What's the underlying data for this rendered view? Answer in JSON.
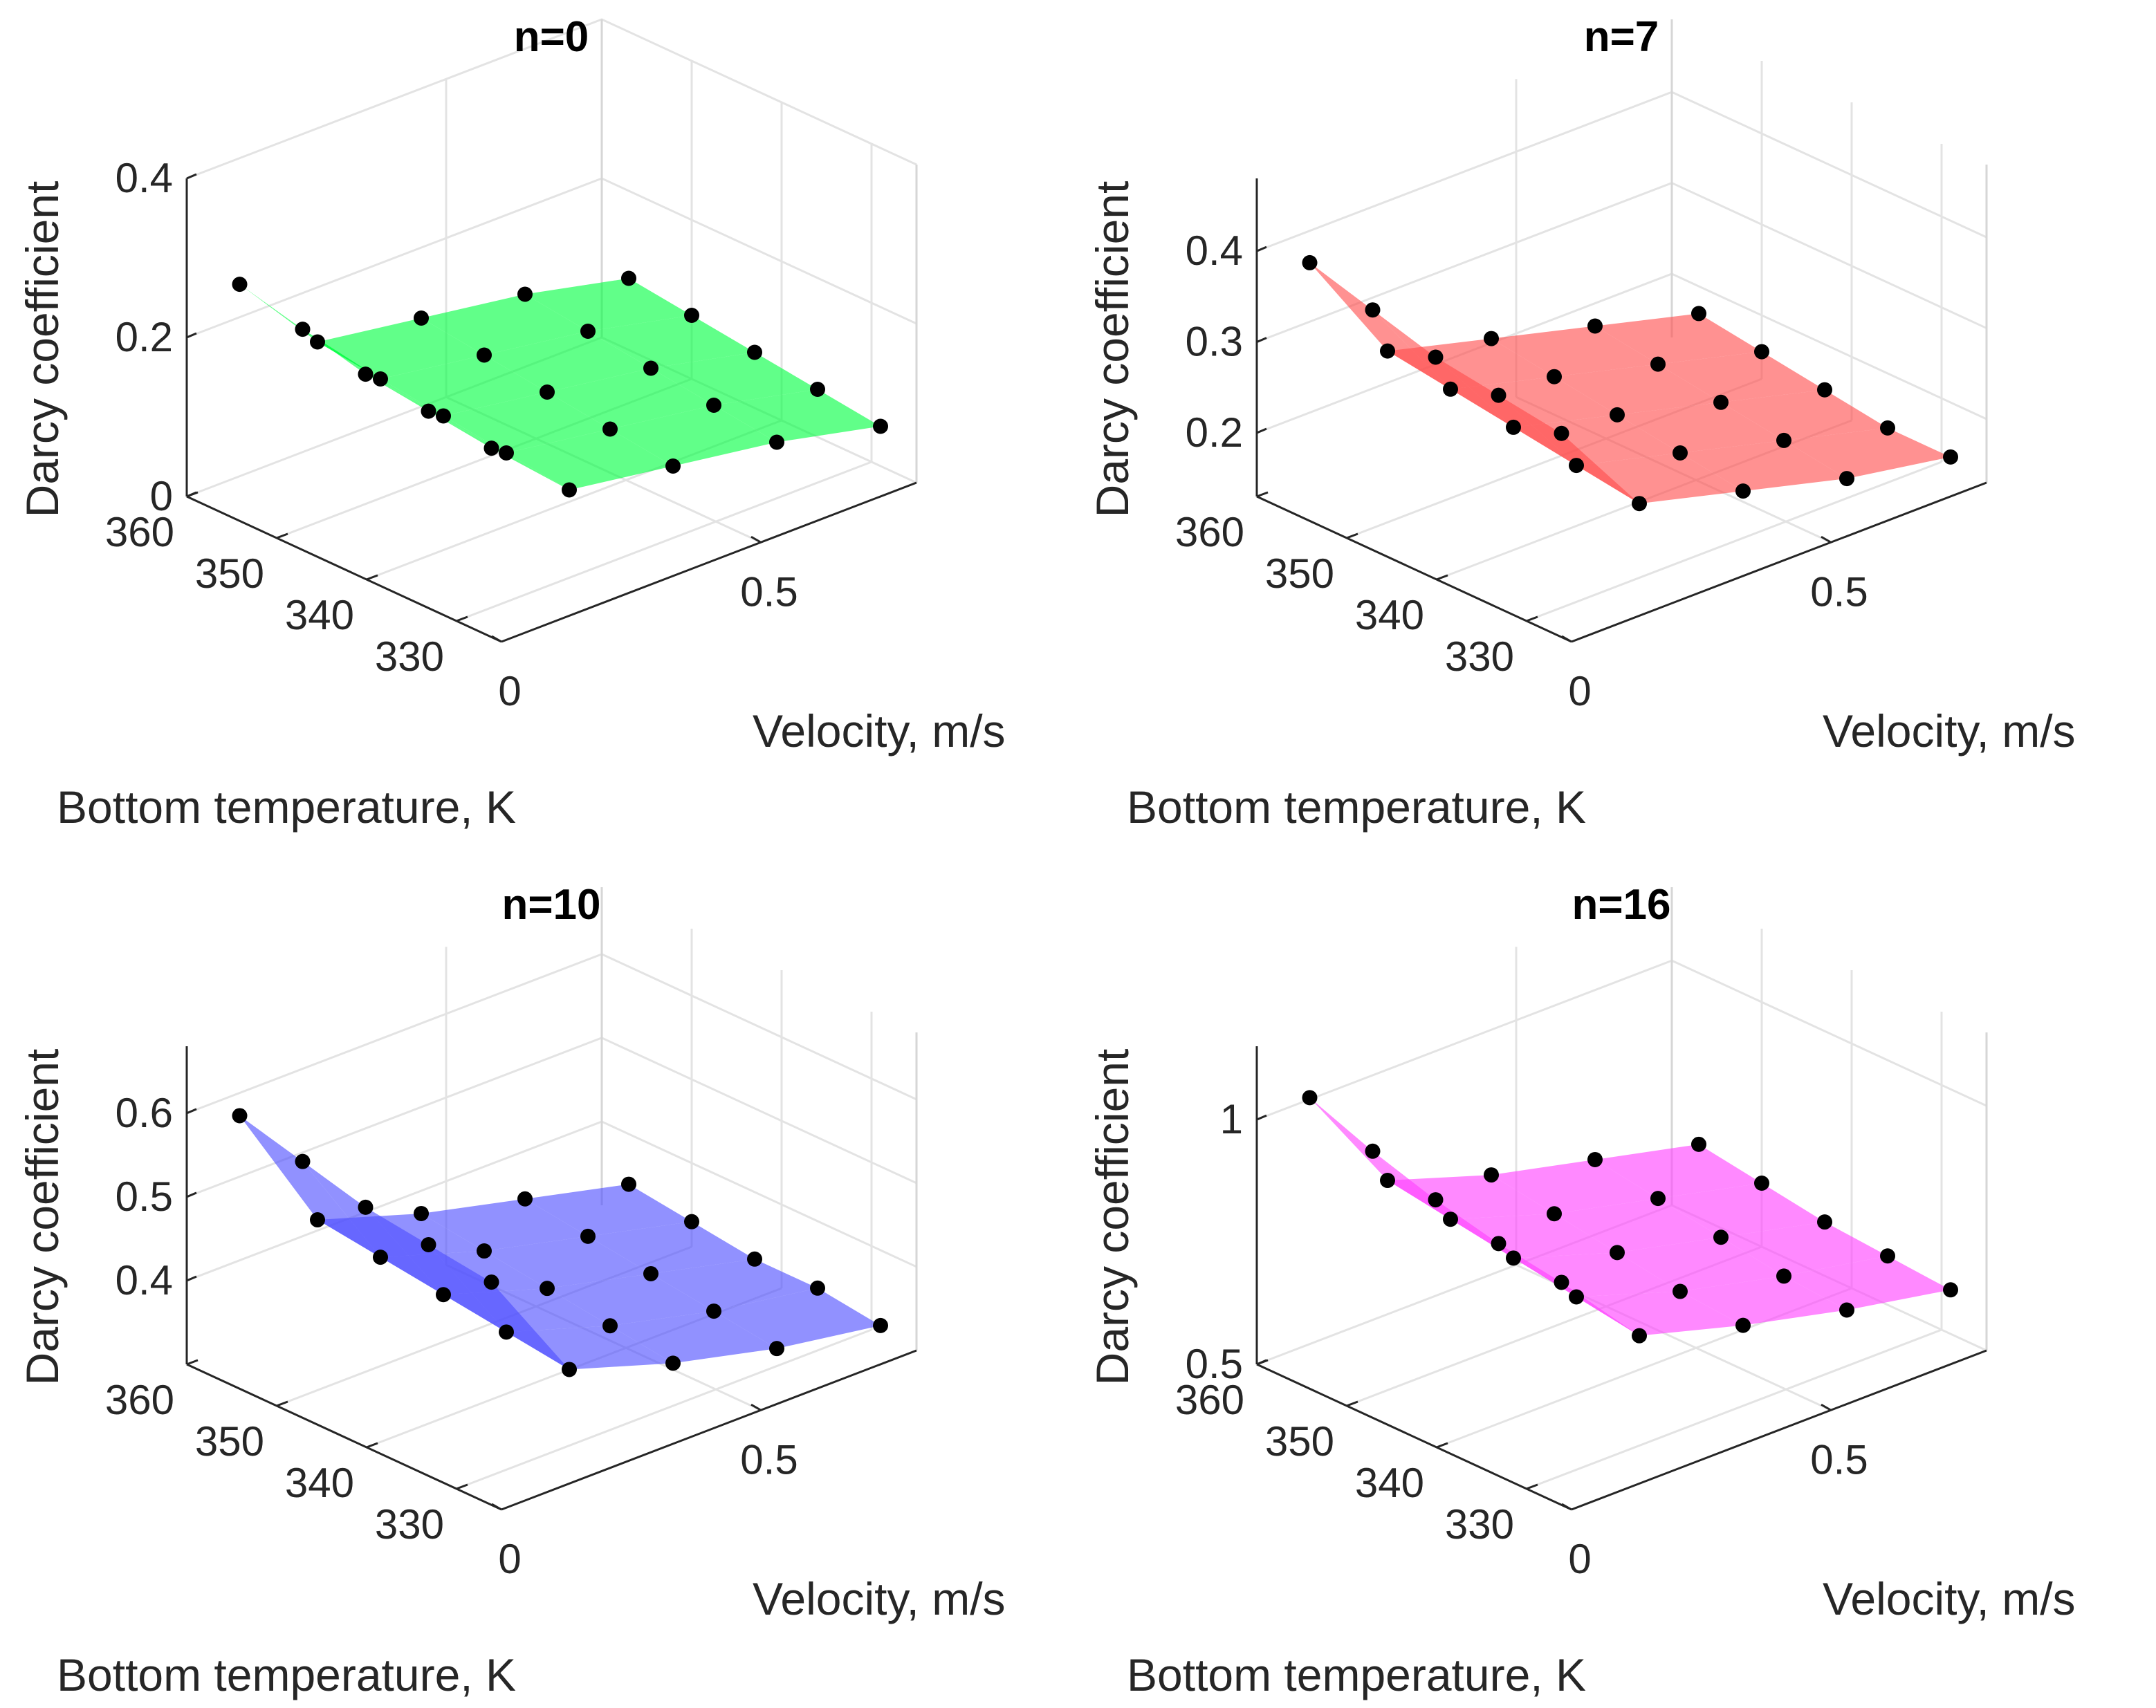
{
  "chart_data": [
    {
      "type": "surface",
      "title": "n=0",
      "color": "#00ff40",
      "xlabel": "Bottom temperature, K",
      "ylabel": "Velocity, m/s",
      "zlabel": "Darcy coefficient",
      "x_ticks": [
        "360",
        "350",
        "340",
        "330"
      ],
      "y_ticks": [
        "0",
        "0.5"
      ],
      "z_ticks": [
        "0",
        "0.2",
        "0.4"
      ],
      "xlim": [
        325,
        360
      ],
      "ylim": [
        0,
        0.8
      ],
      "zlim": [
        0,
        0.4
      ],
      "grid": true,
      "temperatures": [
        357,
        350,
        343,
        336,
        329
      ],
      "velocities": [
        0.05,
        0.2,
        0.4,
        0.6,
        0.8
      ],
      "values": [
        [
          0.27,
          0.16,
          0.14,
          0.12,
          0.09
        ],
        [
          0.25,
          0.15,
          0.13,
          0.11,
          0.08
        ],
        [
          0.23,
          0.14,
          0.12,
          0.1,
          0.07
        ],
        [
          0.22,
          0.13,
          0.11,
          0.09,
          0.06
        ],
        [
          0.21,
          0.12,
          0.1,
          0.08,
          0.05
        ]
      ]
    },
    {
      "type": "surface",
      "title": "n=7",
      "color": "#ff4d4d",
      "xlabel": "Bottom temperature, K",
      "ylabel": "Velocity, m/s",
      "zlabel": "Darcy coefficient",
      "x_ticks": [
        "360",
        "350",
        "340",
        "330"
      ],
      "y_ticks": [
        "0",
        "0.5"
      ],
      "z_ticks": [
        "0.2",
        "0.3",
        "0.4"
      ],
      "xlim": [
        325,
        360
      ],
      "ylim": [
        0,
        0.8
      ],
      "zlim": [
        0.13,
        0.48
      ],
      "grid": true,
      "temperatures": [
        357,
        350,
        343,
        336,
        329
      ],
      "velocities": [
        0.05,
        0.2,
        0.4,
        0.6,
        0.8
      ],
      "values": [
        [
          0.39,
          0.26,
          0.23,
          0.2,
          0.17
        ],
        [
          0.37,
          0.25,
          0.22,
          0.19,
          0.16
        ],
        [
          0.35,
          0.24,
          0.21,
          0.18,
          0.15
        ],
        [
          0.34,
          0.23,
          0.2,
          0.17,
          0.14
        ],
        [
          0.33,
          0.22,
          0.19,
          0.16,
          0.14
        ]
      ]
    },
    {
      "type": "surface",
      "title": "n=10",
      "color": "#4d4dff",
      "xlabel": "Bottom temperature, K",
      "ylabel": "Velocity, m/s",
      "zlabel": "Darcy coefficient",
      "x_ticks": [
        "360",
        "350",
        "340",
        "330"
      ],
      "y_ticks": [
        "0",
        "0.5"
      ],
      "z_ticks": [
        "0.4",
        "0.5",
        "0.6"
      ],
      "xlim": [
        325,
        360
      ],
      "ylim": [
        0,
        0.8
      ],
      "zlim": [
        0.3,
        0.68
      ],
      "grid": true,
      "temperatures": [
        357,
        350,
        343,
        336,
        329
      ],
      "velocities": [
        0.05,
        0.2,
        0.4,
        0.6,
        0.8
      ],
      "values": [
        [
          0.6,
          0.44,
          0.4,
          0.37,
          0.34
        ],
        [
          0.58,
          0.43,
          0.39,
          0.36,
          0.33
        ],
        [
          0.56,
          0.42,
          0.38,
          0.35,
          0.32
        ],
        [
          0.55,
          0.41,
          0.37,
          0.34,
          0.32
        ],
        [
          0.54,
          0.4,
          0.36,
          0.33,
          0.31
        ]
      ]
    },
    {
      "type": "surface",
      "title": "n=16",
      "color": "#ff40ff",
      "xlabel": "Bottom temperature, K",
      "ylabel": "Velocity, m/s",
      "zlabel": "Darcy coefficient",
      "x_ticks": [
        "360",
        "350",
        "340",
        "330"
      ],
      "y_ticks": [
        "0",
        "0.5"
      ],
      "z_ticks": [
        "0.5",
        "1"
      ],
      "xlim": [
        325,
        360
      ],
      "ylim": [
        0,
        0.8
      ],
      "zlim": [
        0.5,
        1.15
      ],
      "grid": true,
      "temperatures": [
        357,
        350,
        343,
        336,
        329
      ],
      "velocities": [
        0.05,
        0.2,
        0.4,
        0.6,
        0.8
      ],
      "values": [
        [
          1.05,
          0.82,
          0.75,
          0.7,
          0.65
        ],
        [
          1.0,
          0.8,
          0.73,
          0.68,
          0.63
        ],
        [
          0.96,
          0.78,
          0.71,
          0.66,
          0.61
        ],
        [
          0.93,
          0.76,
          0.69,
          0.64,
          0.6
        ],
        [
          0.91,
          0.74,
          0.68,
          0.63,
          0.59
        ]
      ]
    }
  ]
}
